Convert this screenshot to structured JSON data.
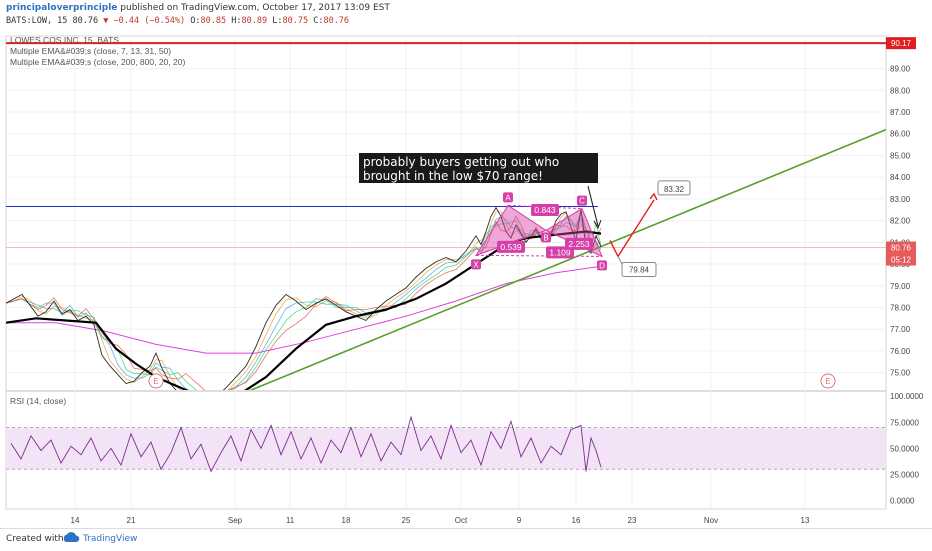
{
  "header": {
    "author": "principaloverprinciple",
    "published": "published on TradingView.com, October 17, 2017 13:09 EST",
    "symbol": "BATS:LOW, 15",
    "last": "80.76",
    "change": "−0.44 (−0.54%)",
    "o_label": "O:",
    "o": "80.85",
    "h_label": "H:",
    "h": "80.89",
    "l_label": "L:",
    "l": "80.75",
    "c_label": "C:",
    "c": "80.76"
  },
  "footer": {
    "created_with": "Created with",
    "brand": "TradingView"
  },
  "colors": {
    "price": "#2b2b2b",
    "ema_black": "#000000",
    "ema_magenta": "#e040e0",
    "trend": "#5aa02c",
    "resistance": "#1f2fd0",
    "top_line": "#e02020",
    "pattern": "#d63fa8",
    "rsi": "#7b2d8e",
    "rsi_band": "#f3e3f7",
    "arrow_red": "#e02020"
  },
  "chart_data": [
    {
      "type": "line",
      "title": "LOWES COS INC, 15, BATS",
      "legend": [
        "LOWES COS INC, 15, BATS",
        "Multiple EMA&#039;s (close, 7, 13, 31, 50)",
        "Multiple EMA&#039;s (close, 200, 800, 20, 20)"
      ],
      "x_tick_labels": [
        "14",
        "21",
        "Sep",
        "11",
        "18",
        "25",
        "Oct",
        "9",
        "16",
        "23",
        "Nov",
        "13"
      ],
      "y_tick_labels": [
        "75.00",
        "76.00",
        "77.00",
        "78.00",
        "79.00",
        "80.00",
        "81.00",
        "82.00",
        "83.00",
        "84.00",
        "85.00",
        "86.00",
        "87.00",
        "88.00",
        "89.00"
      ],
      "ylim": [
        74.2,
        90.5
      ],
      "price_labels": {
        "top": "90.17",
        "last": "80.76",
        "countdown": "05:12"
      },
      "series": [
        {
          "name": "Price",
          "x": [
            0,
            8,
            16,
            24,
            32,
            40,
            48,
            56,
            64,
            72,
            80,
            88,
            96,
            104,
            112,
            120,
            128,
            136,
            144,
            150,
            156,
            164,
            172,
            180,
            190,
            200,
            210,
            220,
            230,
            240,
            250,
            260,
            270,
            280,
            290,
            300,
            310,
            320,
            330,
            340,
            350,
            360,
            370,
            380,
            390,
            400,
            410,
            420,
            430,
            440,
            450,
            460,
            470,
            475,
            480,
            485,
            490,
            495,
            500,
            505,
            510,
            515,
            520,
            525,
            530,
            535,
            540,
            545,
            550,
            555,
            560,
            565,
            570,
            575,
            580,
            585,
            590,
            595
          ],
          "values": [
            78.2,
            78.4,
            78.6,
            78.1,
            77.6,
            77.8,
            78.3,
            77.7,
            77.9,
            77.4,
            77.6,
            77.2,
            75.8,
            75.3,
            74.9,
            74.5,
            74.6,
            75.0,
            75.3,
            75.9,
            75.2,
            74.5,
            74.1,
            74.0,
            73.9,
            73.8,
            73.9,
            74.3,
            74.8,
            75.3,
            76.2,
            77.3,
            78.1,
            78.6,
            78.3,
            77.9,
            78.2,
            78.4,
            78.1,
            77.8,
            77.6,
            77.4,
            77.9,
            78.3,
            78.6,
            78.9,
            79.4,
            79.8,
            80.1,
            80.3,
            80.1,
            80.6,
            81.3,
            80.9,
            81.5,
            82.2,
            82.6,
            82.2,
            81.5,
            81.2,
            81.8,
            81.4,
            81.0,
            81.3,
            81.6,
            81.2,
            81.1,
            81.4,
            82.0,
            82.3,
            82.4,
            81.7,
            81.1,
            82.5,
            80.8,
            80.5,
            81.3,
            80.8
          ]
        },
        {
          "name": "EMA (black)",
          "x": [
            0,
            30,
            60,
            90,
            110,
            130,
            150,
            170,
            190,
            210,
            230,
            260,
            290,
            320,
            350,
            380,
            410,
            440,
            470,
            500,
            520,
            540,
            560,
            580,
            595
          ],
          "values": [
            77.3,
            77.5,
            77.4,
            77.3,
            76.1,
            75.4,
            74.8,
            74.4,
            74.0,
            73.8,
            73.9,
            74.8,
            76.1,
            77.2,
            77.6,
            77.9,
            78.4,
            79.1,
            80.0,
            80.9,
            81.2,
            81.3,
            81.4,
            81.5,
            81.4
          ]
        },
        {
          "name": "EMA 200 (magenta)",
          "x": [
            0,
            50,
            100,
            150,
            200,
            250,
            300,
            350,
            400,
            450,
            500,
            550,
            595
          ],
          "values": [
            77.3,
            77.3,
            76.9,
            76.3,
            75.9,
            75.9,
            76.4,
            77.0,
            77.6,
            78.3,
            79.1,
            79.6,
            79.9
          ]
        }
      ],
      "trendline": {
        "name": "Uptrend",
        "x": [
          240,
          886
        ],
        "values": [
          74.1,
          86.3
        ]
      },
      "resistance": {
        "name": "Resistance",
        "value": 82.65
      },
      "top_level": 90.17,
      "last_level": 80.76,
      "harmonic": {
        "points": [
          {
            "label": "X",
            "x": 470,
            "value": 80.4
          },
          {
            "label": "A",
            "x": 502,
            "value": 82.7
          },
          {
            "label": "B",
            "x": 540,
            "value": 81.55
          },
          {
            "label": "C",
            "x": 576,
            "value": 82.55
          },
          {
            "label": "D",
            "x": 596,
            "value": 80.35
          }
        ],
        "ratios": [
          "0.539",
          "0.843",
          "1.109",
          "2.253"
        ]
      },
      "targets": [
        "83.32",
        "79.84"
      ],
      "annotation": "probably buyers getting out who brought in the low $70 range!"
    },
    {
      "type": "line",
      "title": "RSI (14, close)",
      "y_tick_labels": [
        "100.0000",
        "75.0000",
        "50.0000",
        "25.0000",
        "0.0000"
      ],
      "ylim": [
        -8,
        104
      ],
      "band": [
        30,
        70
      ],
      "series": [
        {
          "name": "RSI",
          "x": [
            5,
            15,
            25,
            35,
            45,
            55,
            65,
            75,
            85,
            95,
            105,
            115,
            125,
            135,
            145,
            155,
            165,
            175,
            185,
            195,
            205,
            215,
            225,
            235,
            245,
            255,
            265,
            275,
            285,
            295,
            305,
            315,
            325,
            335,
            345,
            355,
            365,
            375,
            385,
            395,
            405,
            415,
            425,
            435,
            445,
            455,
            465,
            475,
            485,
            495,
            505,
            515,
            525,
            535,
            545,
            555,
            565,
            575,
            580,
            585,
            590,
            595
          ],
          "values": [
            55,
            40,
            62,
            48,
            58,
            36,
            52,
            44,
            60,
            38,
            50,
            34,
            64,
            42,
            56,
            30,
            46,
            70,
            40,
            54,
            28,
            46,
            62,
            38,
            68,
            50,
            72,
            44,
            66,
            40,
            60,
            36,
            58,
            46,
            70,
            42,
            64,
            38,
            56,
            44,
            80,
            48,
            62,
            40,
            72,
            46,
            58,
            34,
            66,
            50,
            76,
            42,
            60,
            36,
            52,
            44,
            68,
            72,
            28,
            60,
            48,
            32
          ]
        }
      ]
    }
  ]
}
